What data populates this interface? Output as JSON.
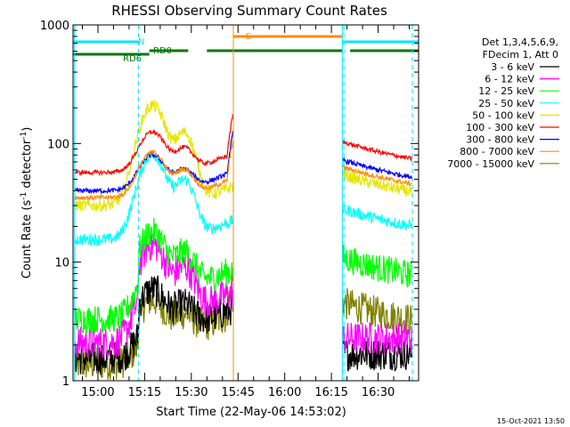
{
  "chart_data": {
    "type": "line",
    "title": "RHESSI Observing Summary Count Rates",
    "xlabel": "Start Time (22-May-06 14:53:02)",
    "ylabel_main": "Count Rate (s",
    "ylabel_sup1": "-1",
    "ylabel_mid": " detector",
    "ylabel_sup2": "-1",
    "ylabel_end": ")",
    "x_range_min": [
      -8,
      103
    ],
    "y_log_range": [
      1,
      1000
    ],
    "x_ticks": [
      {
        "m": 0,
        "label": "15:00"
      },
      {
        "m": 15,
        "label": "15:15"
      },
      {
        "m": 30,
        "label": "15:30"
      },
      {
        "m": 45,
        "label": "15:45"
      },
      {
        "m": 60,
        "label": "16:00"
      },
      {
        "m": 75,
        "label": "16:15"
      },
      {
        "m": 90,
        "label": "16:30"
      }
    ],
    "y_ticks": [
      {
        "v": 1,
        "label": "1"
      },
      {
        "v": 10,
        "label": "10"
      },
      {
        "v": 100,
        "label": "100"
      },
      {
        "v": 1000,
        "label": "1000"
      }
    ],
    "legend_header": [
      "Det 1,3,4,5,6,9,",
      "FDecim 1, Att 0"
    ],
    "series": [
      {
        "name": "3 - 6 keV",
        "color": "#000000"
      },
      {
        "name": "6 - 12 keV",
        "color": "#ff00ff"
      },
      {
        "name": "12 - 25 keV",
        "color": "#00ff00"
      },
      {
        "name": "25 - 50 keV",
        "color": "#00ffff"
      },
      {
        "name": "50 - 100 keV",
        "color": "#e6e600"
      },
      {
        "name": "100 - 300 keV",
        "color": "#ff0000"
      },
      {
        "name": "300 - 800 keV",
        "color": "#0000ff"
      },
      {
        "name": "800 - 7000 keV",
        "color": "#ff8c00"
      },
      {
        "name": "7000 - 15000 keV",
        "color": "#808000"
      }
    ],
    "flags": [
      {
        "label": "N",
        "color": "#00e5ff",
        "segments": [
          [
            -8,
            13
          ],
          [
            78.5,
            103
          ]
        ],
        "level": 0
      },
      {
        "label": "S",
        "color": "#ff8c00",
        "segments": [
          [
            43.5,
            78.5
          ]
        ],
        "level": -1
      },
      {
        "label": "RD0",
        "color": "#007a00",
        "segments": [
          [
            16.5,
            29
          ],
          [
            35,
            78.5
          ],
          [
            81,
            103
          ]
        ],
        "level": 2
      },
      {
        "label": "RD6",
        "color": "#007a00",
        "segments": [
          [
            -8,
            16.5
          ]
        ],
        "level": 3
      }
    ],
    "vlines": [
      {
        "m": -7.5,
        "color": "#00e5ff",
        "dash": false
      },
      {
        "m": 13,
        "color": "#00e5ff",
        "dash": true
      },
      {
        "m": 43.5,
        "color": "#ff8c00",
        "dash": false
      },
      {
        "m": 78.5,
        "color": "#00e5ff",
        "dash": false
      },
      {
        "m": 79,
        "color": "#00e5ff",
        "dash": true
      },
      {
        "m": 101,
        "color": "#00e5ff",
        "dash": true
      }
    ]
  },
  "footer": {
    "date": "15-Oct-2021 13:50"
  }
}
